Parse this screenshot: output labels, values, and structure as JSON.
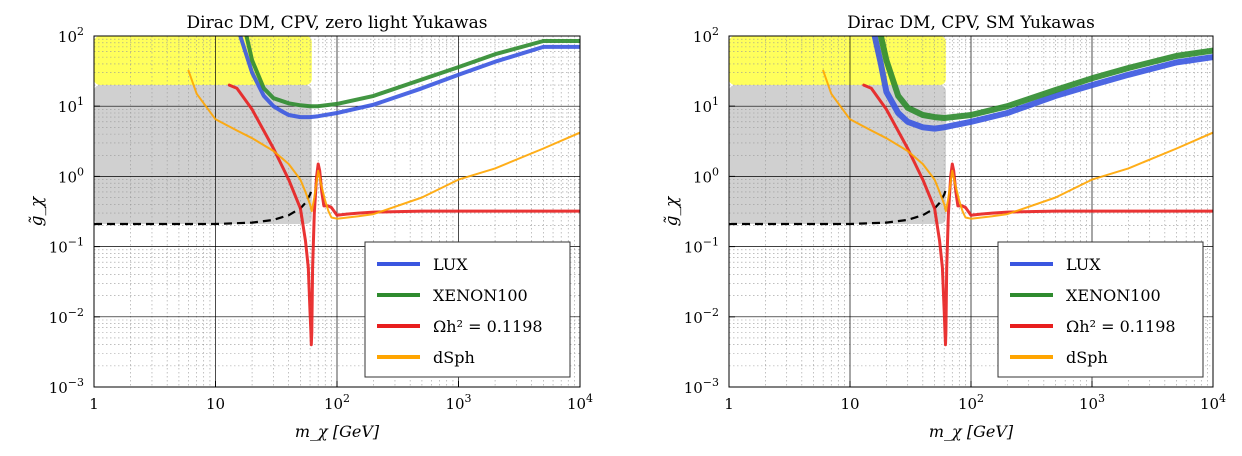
{
  "chart_data": [
    {
      "type": "line",
      "title": "Dirac DM, CPV, zero light Yukawas",
      "xlabel": "m_χ [GeV]",
      "ylabel": "g̃_χ",
      "xscale": "log",
      "yscale": "log",
      "xlim": [
        1,
        10000
      ],
      "ylim": [
        0.001,
        100
      ],
      "x_ticks": [
        {
          "v": 1,
          "base": "1",
          "exp": ""
        },
        {
          "v": 10,
          "base": "10",
          "exp": ""
        },
        {
          "v": 100,
          "base": "10",
          "exp": "2"
        },
        {
          "v": 1000,
          "base": "10",
          "exp": "3"
        },
        {
          "v": 10000,
          "base": "10",
          "exp": "4"
        }
      ],
      "y_ticks": [
        {
          "v": 0.001,
          "base": "10",
          "exp": "−3"
        },
        {
          "v": 0.01,
          "base": "10",
          "exp": "−2"
        },
        {
          "v": 0.1,
          "base": "10",
          "exp": "−1"
        },
        {
          "v": 1,
          "base": "10",
          "exp": "0"
        },
        {
          "v": 10,
          "base": "10",
          "exp": "1"
        },
        {
          "v": 100,
          "base": "10",
          "exp": "2"
        }
      ],
      "grid": true,
      "legend_position": "bottom-right",
      "regions": [
        {
          "name": "yellow-region",
          "color": "#ffff40",
          "x": [
            1,
            62
          ],
          "y": [
            20,
            100
          ]
        },
        {
          "name": "grey-region",
          "color": "#c8c8c8",
          "x": [
            1,
            62
          ],
          "y": [
            0.21,
            20
          ]
        }
      ],
      "dashed_line": {
        "color": "#000000",
        "x": [
          1,
          10,
          20,
          30,
          40,
          50,
          55,
          60,
          62
        ],
        "y": [
          0.21,
          0.21,
          0.22,
          0.24,
          0.28,
          0.35,
          0.42,
          0.55,
          0.65
        ]
      },
      "series": [
        {
          "name": "LUX",
          "color": "#3a56e0",
          "width": 4,
          "x": [
            16,
            20,
            25,
            30,
            35,
            40,
            50,
            60,
            70,
            100,
            200,
            500,
            1000,
            2000,
            5000,
            10000
          ],
          "y": [
            100,
            30,
            14,
            10,
            8.5,
            7.5,
            7.0,
            7.0,
            7.2,
            8.0,
            10.5,
            18,
            28,
            43,
            70,
            70
          ]
        },
        {
          "name": "XENON100",
          "color": "#2e8b2e",
          "width": 4,
          "x": [
            18,
            20,
            25,
            30,
            40,
            50,
            60,
            70,
            100,
            200,
            500,
            1000,
            2000,
            5000,
            10000
          ],
          "y": [
            100,
            45,
            18,
            13,
            11,
            10.3,
            10,
            10,
            10.8,
            14,
            24,
            36,
            55,
            85,
            85
          ]
        },
        {
          "name": "Ωh² = 0.1198",
          "color": "#e81e1e",
          "width": 3,
          "x": [
            13,
            15,
            20,
            30,
            40,
            50,
            55,
            58,
            60,
            61,
            61.5,
            62,
            63,
            65,
            68,
            70,
            72,
            75,
            78,
            80,
            85,
            90,
            100,
            120,
            150,
            200,
            500,
            1000,
            2000,
            5000,
            10000
          ],
          "y": [
            20,
            18,
            9,
            2.5,
            0.9,
            0.35,
            0.12,
            0.05,
            0.012,
            0.006,
            0.004,
            0.006,
            0.05,
            0.3,
            1.0,
            1.5,
            1.2,
            0.6,
            0.38,
            0.38,
            0.38,
            0.36,
            0.28,
            0.29,
            0.3,
            0.31,
            0.32,
            0.32,
            0.32,
            0.32,
            0.32
          ]
        },
        {
          "name": "dSph",
          "color": "#ffa500",
          "width": 2,
          "x": [
            6,
            7,
            10,
            15,
            20,
            30,
            40,
            50,
            55,
            60,
            62,
            65,
            70,
            75,
            80,
            85,
            90,
            100,
            150,
            200,
            500,
            1000,
            2000,
            5000,
            10000
          ],
          "y": [
            32,
            15,
            6.5,
            4.5,
            3.5,
            2.3,
            1.5,
            0.9,
            0.6,
            0.4,
            0.32,
            0.5,
            1.2,
            0.7,
            0.45,
            0.32,
            0.26,
            0.25,
            0.27,
            0.29,
            0.5,
            0.9,
            1.3,
            2.5,
            4.2
          ]
        }
      ]
    },
    {
      "type": "line",
      "title": "Dirac DM, CPV, SM Yukawas",
      "xlabel": "m_χ [GeV]",
      "ylabel": "g̃_χ",
      "xscale": "log",
      "yscale": "log",
      "xlim": [
        1,
        10000
      ],
      "ylim": [
        0.001,
        100
      ],
      "x_ticks": [
        {
          "v": 1,
          "base": "1",
          "exp": ""
        },
        {
          "v": 10,
          "base": "10",
          "exp": ""
        },
        {
          "v": 100,
          "base": "10",
          "exp": "2"
        },
        {
          "v": 1000,
          "base": "10",
          "exp": "3"
        },
        {
          "v": 10000,
          "base": "10",
          "exp": "4"
        }
      ],
      "y_ticks": [
        {
          "v": 0.001,
          "base": "10",
          "exp": "−3"
        },
        {
          "v": 0.01,
          "base": "10",
          "exp": "−2"
        },
        {
          "v": 0.1,
          "base": "10",
          "exp": "−1"
        },
        {
          "v": 1,
          "base": "10",
          "exp": "0"
        },
        {
          "v": 10,
          "base": "10",
          "exp": "1"
        },
        {
          "v": 100,
          "base": "10",
          "exp": "2"
        }
      ],
      "grid": true,
      "legend_position": "bottom-right",
      "regions": [
        {
          "name": "yellow-region",
          "color": "#ffff40",
          "x": [
            1,
            62
          ],
          "y": [
            20,
            100
          ]
        },
        {
          "name": "grey-region",
          "color": "#c8c8c8",
          "x": [
            1,
            62
          ],
          "y": [
            0.21,
            20
          ]
        }
      ],
      "dashed_line": {
        "color": "#000000",
        "x": [
          1,
          10,
          20,
          30,
          40,
          50,
          55,
          60,
          62
        ],
        "y": [
          0.21,
          0.21,
          0.22,
          0.24,
          0.28,
          0.35,
          0.42,
          0.55,
          0.65
        ]
      },
      "series": [
        {
          "name": "LUX",
          "color": "#3a56e0",
          "width": 6,
          "x": [
            16,
            18,
            20,
            25,
            30,
            40,
            50,
            60,
            70,
            100,
            200,
            500,
            1000,
            2000,
            5000,
            10000
          ],
          "y": [
            100,
            40,
            16,
            8,
            6,
            5,
            4.8,
            5,
            5.3,
            6,
            8,
            14,
            20,
            28,
            42,
            50
          ]
        },
        {
          "name": "XENON100",
          "color": "#2e8b2e",
          "width": 6,
          "x": [
            18,
            20,
            25,
            30,
            40,
            50,
            60,
            70,
            100,
            200,
            500,
            1000,
            2000,
            5000,
            10000
          ],
          "y": [
            100,
            45,
            14,
            9.5,
            7.5,
            7,
            6.8,
            7,
            7.5,
            10,
            17,
            25,
            35,
            52,
            62
          ]
        },
        {
          "name": "Ωh² = 0.1198",
          "color": "#e81e1e",
          "width": 3,
          "x": [
            13,
            15,
            20,
            30,
            40,
            50,
            55,
            58,
            60,
            61,
            61.5,
            62,
            63,
            65,
            68,
            70,
            72,
            75,
            78,
            80,
            85,
            90,
            100,
            120,
            150,
            200,
            500,
            1000,
            2000,
            5000,
            10000
          ],
          "y": [
            20,
            18,
            9,
            2.5,
            0.9,
            0.35,
            0.12,
            0.05,
            0.012,
            0.006,
            0.004,
            0.006,
            0.05,
            0.3,
            1.0,
            1.5,
            1.2,
            0.6,
            0.38,
            0.38,
            0.38,
            0.36,
            0.28,
            0.29,
            0.3,
            0.31,
            0.32,
            0.32,
            0.32,
            0.32,
            0.32
          ]
        },
        {
          "name": "dSph",
          "color": "#ffa500",
          "width": 2,
          "x": [
            6,
            7,
            10,
            15,
            20,
            30,
            40,
            50,
            55,
            60,
            62,
            65,
            70,
            75,
            80,
            85,
            90,
            100,
            150,
            200,
            500,
            1000,
            2000,
            5000,
            10000
          ],
          "y": [
            32,
            15,
            6.5,
            4.5,
            3.5,
            2.3,
            1.5,
            0.9,
            0.6,
            0.4,
            0.32,
            0.5,
            1.2,
            0.7,
            0.45,
            0.32,
            0.26,
            0.25,
            0.27,
            0.29,
            0.5,
            0.9,
            1.3,
            2.5,
            4.2
          ]
        }
      ]
    }
  ]
}
